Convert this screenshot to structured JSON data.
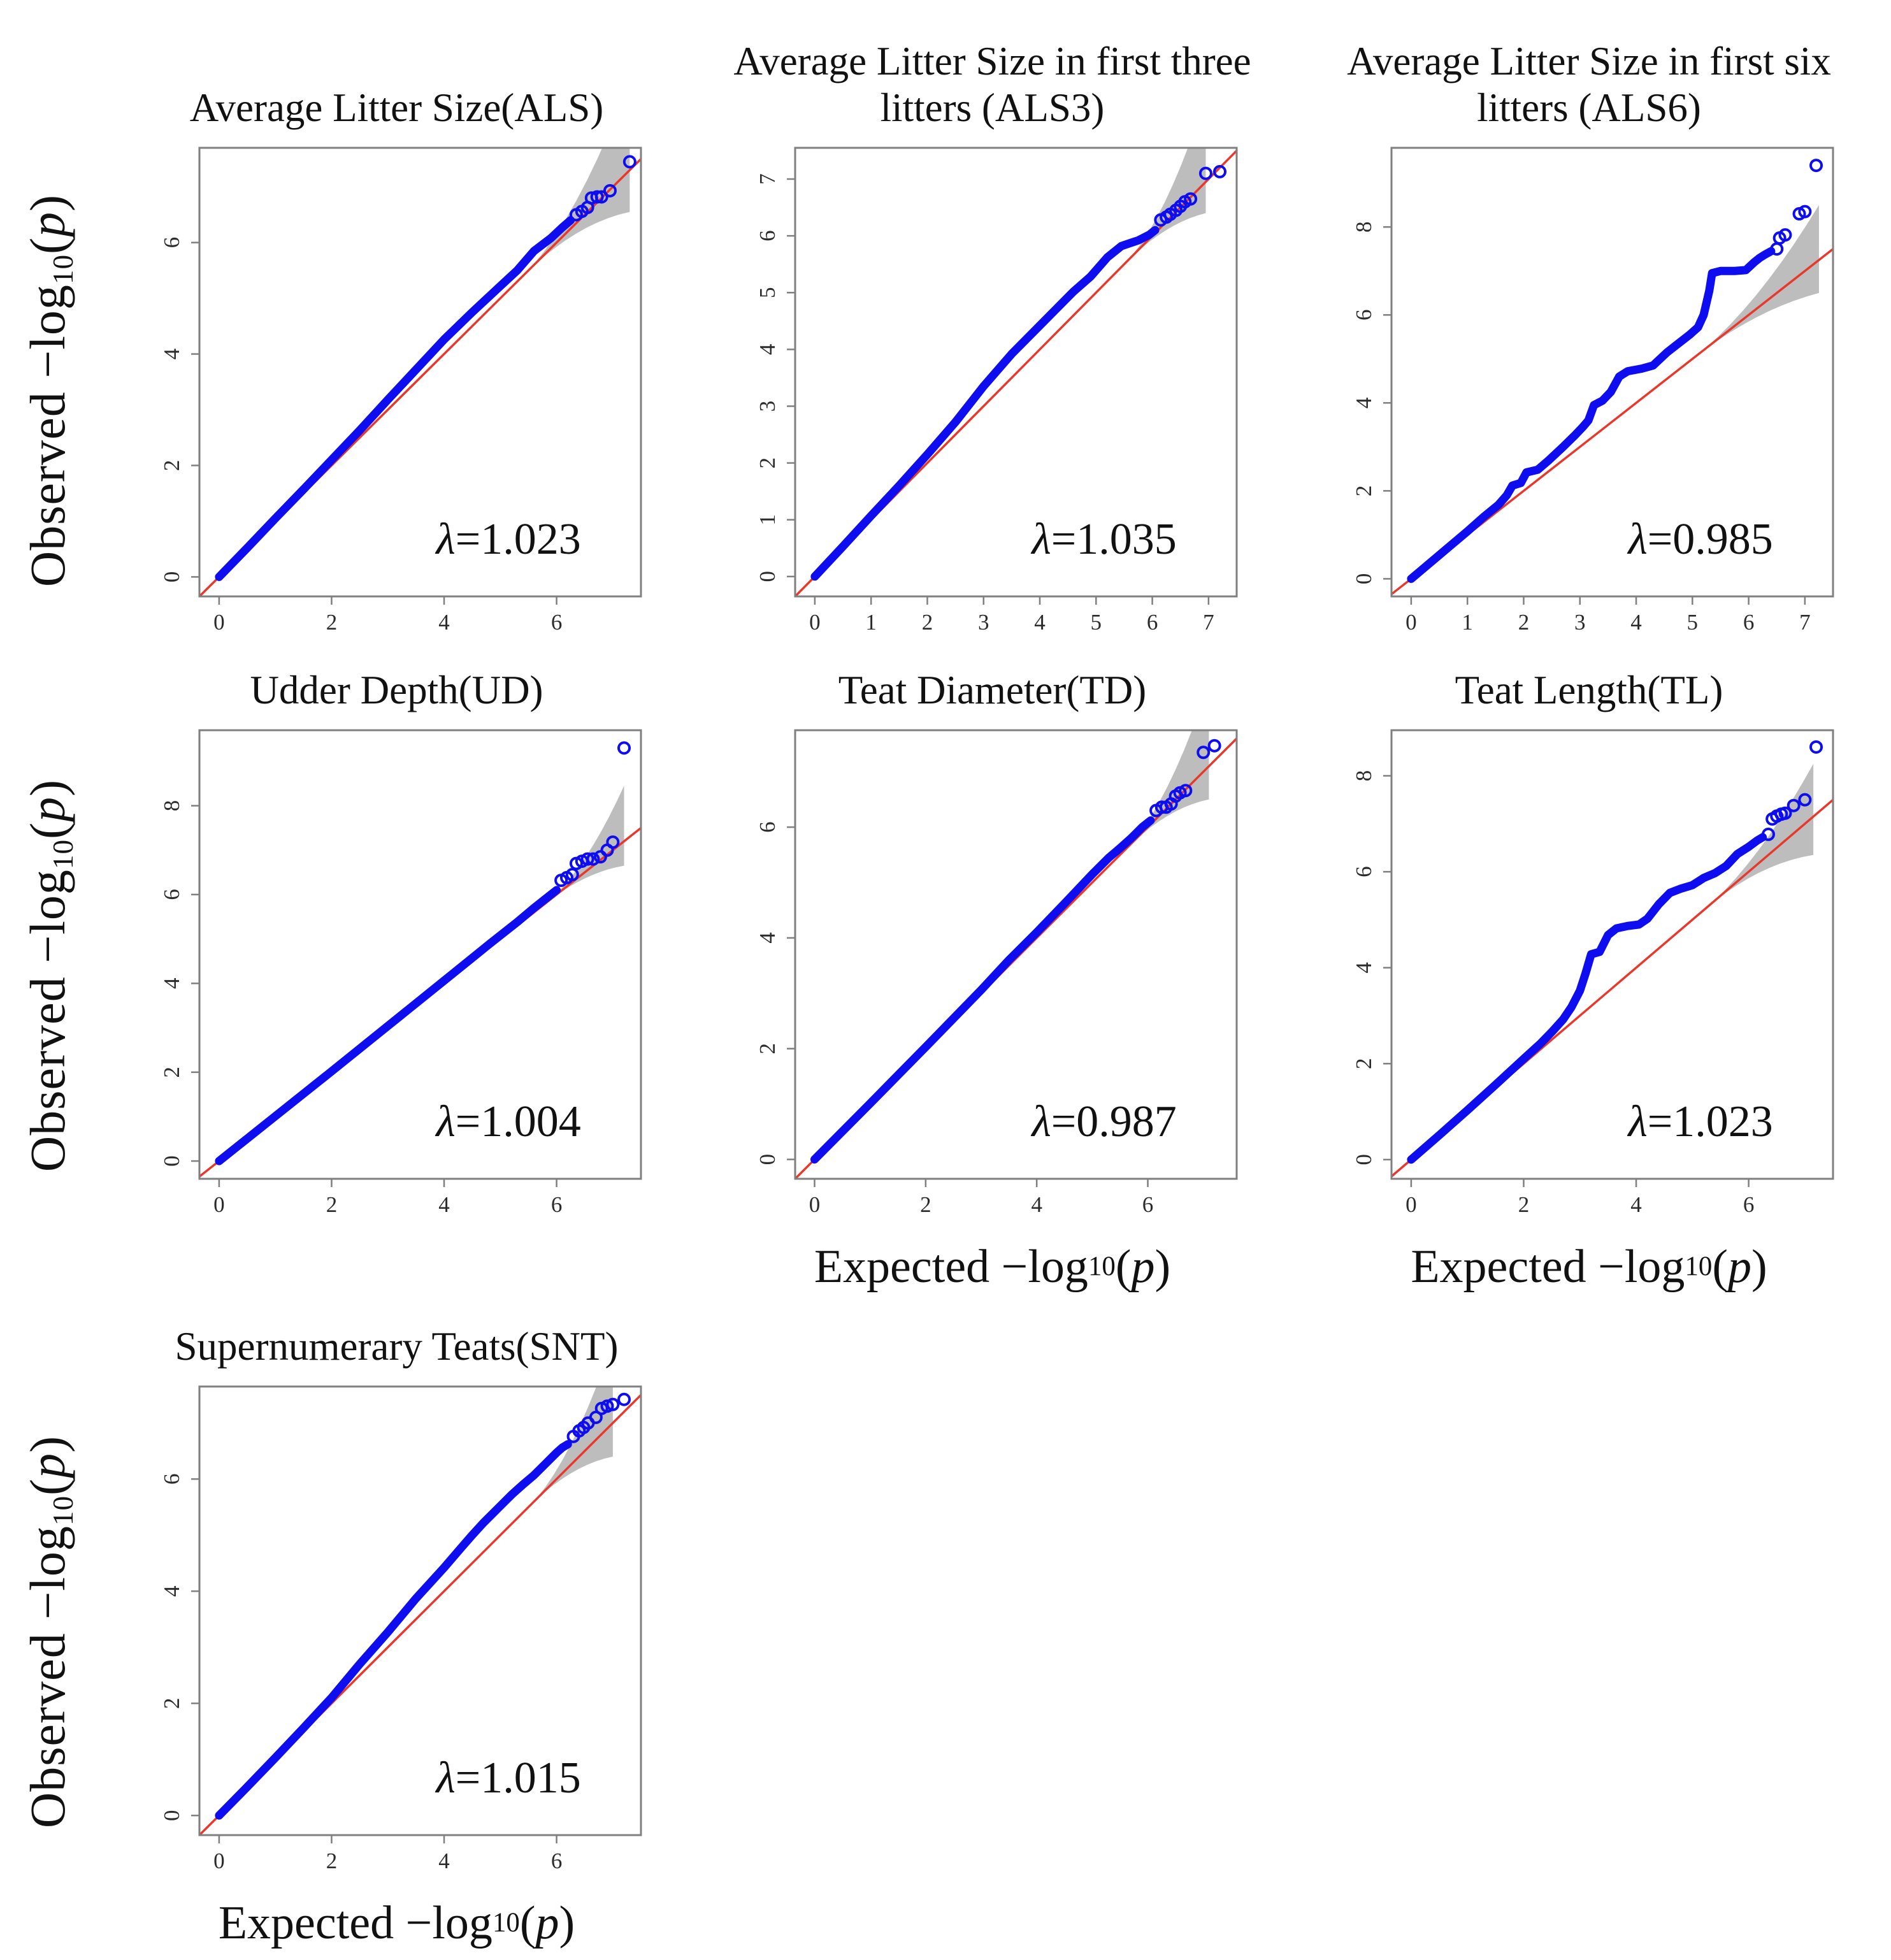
{
  "labels": {
    "observed": {
      "pre": "Observed −log"
    },
    "expected": {
      "pre": "Expected −log"
    },
    "shared": {
      "sub": "10",
      "open": "(",
      "p": "p",
      "close": ")"
    }
  },
  "colors": {
    "points": "#0d0df0",
    "refline": "#e8382c",
    "band": "#bdbdbd",
    "box": "#7f7f7f",
    "tick_text": "#2b2b2b",
    "lambda_text": "#111111"
  },
  "chart_data": [
    {
      "id": "ALS",
      "type": "scatter",
      "title": "Average Litter Size(ALS)",
      "lambda": "λ=1.023",
      "xlabel": "Expected −log10(p)",
      "ylabel": "Observed −log10(p)",
      "xlim": [
        -0.35,
        7.5
      ],
      "ylim": [
        -0.35,
        7.7
      ],
      "xticks": [
        0,
        2,
        4,
        6
      ],
      "yticks": [
        0,
        2,
        4,
        6
      ],
      "curve": [
        [
          0,
          0
        ],
        [
          0.5,
          0.52
        ],
        [
          1,
          1.05
        ],
        [
          1.5,
          1.57
        ],
        [
          2,
          2.1
        ],
        [
          2.5,
          2.63
        ],
        [
          3,
          3.18
        ],
        [
          3.5,
          3.72
        ],
        [
          4,
          4.26
        ],
        [
          4.5,
          4.75
        ],
        [
          5,
          5.22
        ],
        [
          5.3,
          5.5
        ],
        [
          5.6,
          5.85
        ],
        [
          5.9,
          6.08
        ],
        [
          6.1,
          6.27
        ],
        [
          6.25,
          6.4
        ]
      ],
      "outliers": [
        [
          6.35,
          6.5
        ],
        [
          6.45,
          6.56
        ],
        [
          6.55,
          6.63
        ],
        [
          6.62,
          6.8
        ],
        [
          6.72,
          6.82
        ],
        [
          6.8,
          6.82
        ],
        [
          6.95,
          6.93
        ],
        [
          7.3,
          7.45
        ]
      ],
      "band": {
        "s": 5.4,
        "e": 7.3,
        "uw": 1.6,
        "lw": 0.75
      }
    },
    {
      "id": "ALS3",
      "type": "scatter",
      "title": "Average Litter Size in first three litters (ALS3)",
      "lambda": "λ=1.035",
      "xlabel": "Expected −log10(p)",
      "ylabel": "Observed −log10(p)",
      "xlim": [
        -0.35,
        7.5
      ],
      "ylim": [
        -0.35,
        7.55
      ],
      "xticks": [
        0,
        1,
        2,
        3,
        4,
        5,
        6,
        7
      ],
      "yticks": [
        0,
        1,
        2,
        3,
        4,
        5,
        6,
        7
      ],
      "curve": [
        [
          0,
          0
        ],
        [
          0.5,
          0.53
        ],
        [
          1,
          1.07
        ],
        [
          1.5,
          1.6
        ],
        [
          2,
          2.15
        ],
        [
          2.5,
          2.72
        ],
        [
          3,
          3.35
        ],
        [
          3.5,
          3.92
        ],
        [
          4,
          4.42
        ],
        [
          4.3,
          4.72
        ],
        [
          4.6,
          5.02
        ],
        [
          4.9,
          5.28
        ],
        [
          5.2,
          5.62
        ],
        [
          5.45,
          5.82
        ],
        [
          5.6,
          5.87
        ],
        [
          5.75,
          5.92
        ],
        [
          5.95,
          6.02
        ],
        [
          6.05,
          6.1
        ]
      ],
      "outliers": [
        [
          6.15,
          6.28
        ],
        [
          6.25,
          6.33
        ],
        [
          6.32,
          6.38
        ],
        [
          6.42,
          6.45
        ],
        [
          6.5,
          6.52
        ],
        [
          6.58,
          6.6
        ],
        [
          6.68,
          6.65
        ],
        [
          6.95,
          7.1
        ],
        [
          7.2,
          7.13
        ]
      ],
      "band": {
        "s": 5.5,
        "e": 6.95,
        "uw": 1.5,
        "lw": 0.55
      }
    },
    {
      "id": "ALS6",
      "type": "scatter",
      "title": "Average Litter Size in first six litters (ALS6)",
      "lambda": "λ=0.985",
      "xlabel": "Expected −log10(p)",
      "ylabel": "Observed −log10(p)",
      "xlim": [
        -0.35,
        7.5
      ],
      "ylim": [
        -0.4,
        9.8
      ],
      "xticks": [
        0,
        1,
        2,
        3,
        4,
        5,
        6,
        7
      ],
      "yticks": [
        0,
        2,
        4,
        6,
        8
      ],
      "curve": [
        [
          0,
          0
        ],
        [
          0.5,
          0.54
        ],
        [
          1,
          1.08
        ],
        [
          1.3,
          1.42
        ],
        [
          1.55,
          1.68
        ],
        [
          1.7,
          1.9
        ],
        [
          1.8,
          2.12
        ],
        [
          1.95,
          2.18
        ],
        [
          2.05,
          2.42
        ],
        [
          2.25,
          2.48
        ],
        [
          2.45,
          2.7
        ],
        [
          2.7,
          3.0
        ],
        [
          2.9,
          3.25
        ],
        [
          3.05,
          3.45
        ],
        [
          3.15,
          3.6
        ],
        [
          3.25,
          3.95
        ],
        [
          3.4,
          4.05
        ],
        [
          3.55,
          4.25
        ],
        [
          3.7,
          4.6
        ],
        [
          3.85,
          4.72
        ],
        [
          4.1,
          4.78
        ],
        [
          4.3,
          4.85
        ],
        [
          4.55,
          5.15
        ],
        [
          4.75,
          5.35
        ],
        [
          4.95,
          5.55
        ],
        [
          5.1,
          5.72
        ],
        [
          5.2,
          6.0
        ],
        [
          5.3,
          6.55
        ],
        [
          5.35,
          6.95
        ],
        [
          5.5,
          7.0
        ],
        [
          5.75,
          7.0
        ],
        [
          5.95,
          7.02
        ],
        [
          6.1,
          7.2
        ],
        [
          6.2,
          7.3
        ],
        [
          6.3,
          7.38
        ],
        [
          6.4,
          7.45
        ]
      ],
      "outliers": [
        [
          6.5,
          7.5
        ],
        [
          6.55,
          7.75
        ],
        [
          6.65,
          7.82
        ],
        [
          6.9,
          8.3
        ],
        [
          7.0,
          8.35
        ],
        [
          7.2,
          9.4
        ]
      ],
      "band": {
        "s": 5.0,
        "e": 7.25,
        "uw": 1.25,
        "lw": 0.75
      }
    },
    {
      "id": "UD",
      "type": "scatter",
      "title": "Udder Depth(UD)",
      "lambda": "λ=1.004",
      "xlabel": "Expected −log10(p)",
      "ylabel": "Observed −log10(p)",
      "xlim": [
        -0.35,
        7.5
      ],
      "ylim": [
        -0.4,
        9.7
      ],
      "xticks": [
        0,
        2,
        4,
        6
      ],
      "yticks": [
        0,
        2,
        4,
        6,
        8
      ],
      "curve": [
        [
          0,
          0
        ],
        [
          1,
          1.01
        ],
        [
          2,
          2.02
        ],
        [
          3,
          3.04
        ],
        [
          4,
          4.06
        ],
        [
          4.8,
          4.88
        ],
        [
          5.3,
          5.38
        ],
        [
          5.6,
          5.7
        ],
        [
          5.85,
          5.95
        ],
        [
          6.0,
          6.1
        ]
      ],
      "outliers": [
        [
          6.08,
          6.32
        ],
        [
          6.18,
          6.38
        ],
        [
          6.28,
          6.45
        ],
        [
          6.35,
          6.7
        ],
        [
          6.45,
          6.75
        ],
        [
          6.55,
          6.8
        ],
        [
          6.65,
          6.8
        ],
        [
          6.78,
          6.85
        ],
        [
          6.9,
          7.0
        ],
        [
          7.0,
          7.18
        ],
        [
          7.2,
          9.3
        ]
      ],
      "band": {
        "s": 5.8,
        "e": 7.2,
        "uw": 1.25,
        "lw": 0.55
      }
    },
    {
      "id": "TD",
      "type": "scatter",
      "title": "Teat Diameter(TD)",
      "lambda": "λ=0.987",
      "xlabel": "Expected −log10(p)",
      "ylabel": "Observed −log10(p)",
      "xlim": [
        -0.35,
        7.6
      ],
      "ylim": [
        -0.35,
        7.75
      ],
      "xticks": [
        0,
        2,
        4,
        6
      ],
      "yticks": [
        0,
        2,
        4,
        6
      ],
      "curve": [
        [
          0,
          0
        ],
        [
          1,
          1.01
        ],
        [
          2,
          2.03
        ],
        [
          3,
          3.06
        ],
        [
          3.5,
          3.6
        ],
        [
          4,
          4.1
        ],
        [
          4.5,
          4.62
        ],
        [
          5,
          5.15
        ],
        [
          5.3,
          5.45
        ],
        [
          5.5,
          5.62
        ],
        [
          5.7,
          5.8
        ],
        [
          5.9,
          6.0
        ],
        [
          6.05,
          6.12
        ]
      ],
      "outliers": [
        [
          6.15,
          6.3
        ],
        [
          6.25,
          6.36
        ],
        [
          6.33,
          6.36
        ],
        [
          6.42,
          6.42
        ],
        [
          6.5,
          6.56
        ],
        [
          6.58,
          6.62
        ],
        [
          6.68,
          6.66
        ],
        [
          7.0,
          7.35
        ],
        [
          7.2,
          7.47
        ]
      ],
      "band": {
        "s": 5.6,
        "e": 7.1,
        "uw": 1.5,
        "lw": 0.6
      }
    },
    {
      "id": "TL",
      "type": "scatter",
      "title": "Teat Length(TL)",
      "lambda": "λ=1.023",
      "xlabel": "Expected −log10(p)",
      "ylabel": "Observed −log10(p)",
      "xlim": [
        -0.35,
        7.5
      ],
      "ylim": [
        -0.4,
        8.95
      ],
      "xticks": [
        0,
        2,
        4,
        6
      ],
      "yticks": [
        0,
        2,
        4,
        6,
        8
      ],
      "curve": [
        [
          0,
          0
        ],
        [
          0.5,
          0.51
        ],
        [
          1,
          1.03
        ],
        [
          1.5,
          1.56
        ],
        [
          2,
          2.1
        ],
        [
          2.3,
          2.42
        ],
        [
          2.5,
          2.66
        ],
        [
          2.7,
          2.92
        ],
        [
          2.85,
          3.18
        ],
        [
          3.0,
          3.52
        ],
        [
          3.1,
          3.88
        ],
        [
          3.2,
          4.28
        ],
        [
          3.35,
          4.33
        ],
        [
          3.5,
          4.68
        ],
        [
          3.65,
          4.82
        ],
        [
          3.85,
          4.87
        ],
        [
          4.05,
          4.9
        ],
        [
          4.2,
          5.02
        ],
        [
          4.4,
          5.32
        ],
        [
          4.6,
          5.56
        ],
        [
          4.8,
          5.65
        ],
        [
          5.0,
          5.72
        ],
        [
          5.2,
          5.87
        ],
        [
          5.4,
          5.97
        ],
        [
          5.6,
          6.12
        ],
        [
          5.8,
          6.37
        ],
        [
          6.0,
          6.52
        ],
        [
          6.15,
          6.65
        ],
        [
          6.25,
          6.72
        ]
      ],
      "outliers": [
        [
          6.35,
          6.78
        ],
        [
          6.42,
          7.1
        ],
        [
          6.5,
          7.16
        ],
        [
          6.58,
          7.2
        ],
        [
          6.65,
          7.22
        ],
        [
          6.8,
          7.38
        ],
        [
          7.0,
          7.5
        ],
        [
          7.2,
          8.6
        ]
      ],
      "band": {
        "s": 5.2,
        "e": 7.15,
        "uw": 1.1,
        "lw": 0.8
      }
    },
    {
      "id": "SNT",
      "type": "scatter",
      "title": "Supernumerary Teats(SNT)",
      "lambda": "λ=1.015",
      "xlabel": "Expected −log10(p)",
      "ylabel": "Observed −log10(p)",
      "xlim": [
        -0.35,
        7.5
      ],
      "ylim": [
        -0.35,
        7.65
      ],
      "xticks": [
        0,
        2,
        4,
        6
      ],
      "yticks": [
        0,
        2,
        4,
        6
      ],
      "curve": [
        [
          0,
          0
        ],
        [
          0.5,
          0.51
        ],
        [
          1,
          1.03
        ],
        [
          1.5,
          1.56
        ],
        [
          2,
          2.1
        ],
        [
          2.5,
          2.7
        ],
        [
          3,
          3.27
        ],
        [
          3.5,
          3.87
        ],
        [
          4,
          4.42
        ],
        [
          4.3,
          4.77
        ],
        [
          4.5,
          5.0
        ],
        [
          4.7,
          5.22
        ],
        [
          5.0,
          5.52
        ],
        [
          5.2,
          5.72
        ],
        [
          5.4,
          5.9
        ],
        [
          5.6,
          6.07
        ],
        [
          5.8,
          6.27
        ],
        [
          6.0,
          6.47
        ],
        [
          6.1,
          6.56
        ],
        [
          6.2,
          6.62
        ]
      ],
      "outliers": [
        [
          6.3,
          6.76
        ],
        [
          6.4,
          6.86
        ],
        [
          6.48,
          6.92
        ],
        [
          6.56,
          7.0
        ],
        [
          6.7,
          7.1
        ],
        [
          6.8,
          7.26
        ],
        [
          6.9,
          7.3
        ],
        [
          7.0,
          7.33
        ],
        [
          7.2,
          7.42
        ]
      ],
      "band": {
        "s": 5.5,
        "e": 7.0,
        "uw": 1.45,
        "lw": 0.6
      }
    }
  ]
}
